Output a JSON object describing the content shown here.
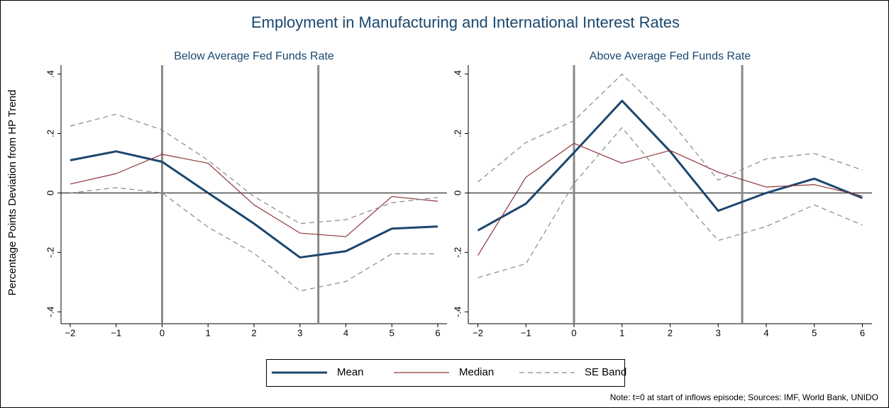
{
  "title": "Employment in Manufacturing and International Interest Rates",
  "ylabel": "Percentage Points Deviation from HP Trend",
  "note": "Note: t=0 at start of inflows episode; Sources: IMF, World Bank, UNIDO",
  "chart_data": [
    {
      "type": "line",
      "title": "Below Average Fed Funds Rate",
      "x": [
        -2,
        -1,
        0,
        1,
        2,
        3,
        4,
        5,
        6
      ],
      "xlim": [
        -2.2,
        6.2
      ],
      "ylim": [
        -0.44,
        0.43
      ],
      "xticks": [
        {
          "value": -2,
          "label": "−2"
        },
        {
          "value": -1,
          "label": "−1"
        },
        0,
        1,
        2,
        3,
        4,
        5,
        6
      ],
      "yticks": [
        {
          "value": -0.4,
          "label": "-.4"
        },
        {
          "value": -0.2,
          "label": "-.2"
        },
        0,
        {
          "value": 0.2,
          "label": ".2"
        },
        {
          "value": 0.4,
          "label": ".4"
        }
      ],
      "hline": 0,
      "vlines": [
        0,
        3.4
      ],
      "series": [
        {
          "name": "Mean",
          "color": "#1a476f",
          "width": 3,
          "dashed": false,
          "values": [
            0.11,
            0.14,
            0.105,
            0.0,
            -0.103,
            -0.217,
            -0.196,
            -0.12,
            -0.113
          ]
        },
        {
          "name": "Median",
          "color": "#90353b",
          "width": 1.2,
          "dashed": false,
          "values": [
            0.03,
            0.065,
            0.13,
            0.1,
            -0.04,
            -0.135,
            -0.147,
            -0.012,
            -0.028
          ]
        },
        {
          "name": "SE Band",
          "color": "#888888",
          "width": 1.2,
          "dashed": true,
          "values": [
            0.225,
            0.265,
            0.212,
            0.11,
            -0.012,
            -0.103,
            -0.09,
            -0.033,
            -0.015
          ]
        },
        {
          "name": "SE Band",
          "color": "#888888",
          "width": 1.2,
          "dashed": true,
          "values": [
            0.0,
            0.018,
            0.0,
            -0.115,
            -0.203,
            -0.33,
            -0.298,
            -0.205,
            -0.205
          ]
        }
      ]
    },
    {
      "type": "line",
      "title": "Above Average Fed Funds Rate",
      "x": [
        -2,
        -1,
        0,
        1,
        2,
        3,
        4,
        5,
        6
      ],
      "xlim": [
        -2.2,
        6.2
      ],
      "ylim": [
        -0.44,
        0.43
      ],
      "xticks": [
        {
          "value": -2,
          "label": "−2"
        },
        {
          "value": -1,
          "label": "−1"
        },
        0,
        1,
        2,
        3,
        4,
        5,
        6
      ],
      "yticks": [
        {
          "value": -0.4,
          "label": "-.4"
        },
        {
          "value": -0.2,
          "label": "-.2"
        },
        0,
        {
          "value": 0.2,
          "label": ".2"
        },
        {
          "value": 0.4,
          "label": ".4"
        }
      ],
      "hline": 0,
      "vlines": [
        0,
        3.5
      ],
      "series": [
        {
          "name": "Mean",
          "color": "#1a476f",
          "width": 3,
          "dashed": false,
          "values": [
            -0.126,
            -0.036,
            0.136,
            0.31,
            0.14,
            -0.06,
            0.0,
            0.048,
            -0.017
          ]
        },
        {
          "name": "Median",
          "color": "#90353b",
          "width": 1.2,
          "dashed": false,
          "values": [
            -0.21,
            0.053,
            0.167,
            0.1,
            0.143,
            0.07,
            0.02,
            0.028,
            -0.01
          ]
        },
        {
          "name": "SE Band",
          "color": "#888888",
          "width": 1.2,
          "dashed": true,
          "values": [
            0.037,
            0.17,
            0.243,
            0.4,
            0.243,
            0.043,
            0.115,
            0.133,
            0.077
          ]
        },
        {
          "name": "SE Band",
          "color": "#888888",
          "width": 1.2,
          "dashed": true,
          "values": [
            -0.285,
            -0.238,
            0.032,
            0.22,
            0.025,
            -0.16,
            -0.113,
            -0.04,
            -0.108
          ]
        }
      ]
    }
  ]
}
